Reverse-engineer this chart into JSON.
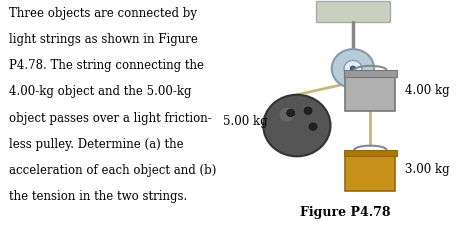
{
  "bg_color": "#ffffff",
  "text_color": "#000000",
  "figure_label": "Figure P4.78",
  "description_lines": [
    "Three objects are connected by",
    "light strings as shown in Figure",
    "P4.78. The string connecting the",
    "4.00-kg object and the 5.00-kg",
    "object passes over a light friction-",
    "less pulley. Determine (a) the",
    "acceleration of each object and (b)",
    "the tension in the two strings."
  ],
  "ceiling_color": "#c8d0c0",
  "ceiling_edge": "#aaaaaa",
  "pulley_color": "#b8ccd8",
  "pulley_edge": "#8899aa",
  "pulley_inner_color": "#ddeeff",
  "rope_color": "#c8b87a",
  "ball_color": "#555555",
  "ball_edge": "#333333",
  "bucket1_color": "#b0b0b0",
  "bucket1_edge": "#777777",
  "bucket1_rim_color": "#999999",
  "bucket2_color": "#c8921a",
  "bucket2_edge": "#996611",
  "bucket2_rim_color": "#aa7700",
  "handle_color": "#888888",
  "font_size_labels": 8.5,
  "font_size_desc": 8.5,
  "font_size_fig_label": 9
}
